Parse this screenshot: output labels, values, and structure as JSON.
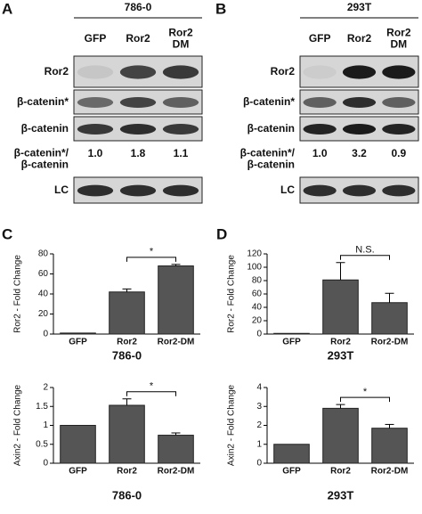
{
  "blots": [
    {
      "letter": "A",
      "cell_line": "786-0",
      "lanes": [
        [
          "GFP"
        ],
        [
          "Ror2"
        ],
        [
          "Ror2",
          "DM"
        ]
      ],
      "rows": [
        {
          "label": [
            "Ror2"
          ]
        },
        {
          "label": [
            "β-catenin*"
          ]
        },
        {
          "label": [
            "β-catenin"
          ]
        },
        {
          "label": [
            "β-catenin*/",
            "β-catenin"
          ],
          "values": [
            "1.0",
            "1.8",
            "1.1"
          ]
        },
        {
          "label": [
            "LC"
          ]
        }
      ]
    },
    {
      "letter": "B",
      "cell_line": "293T",
      "lanes": [
        [
          "GFP"
        ],
        [
          "Ror2"
        ],
        [
          "Ror2",
          "DM"
        ]
      ],
      "rows": [
        {
          "label": [
            "Ror2"
          ]
        },
        {
          "label": [
            "β-catenin*"
          ]
        },
        {
          "label": [
            "β-catenin"
          ]
        },
        {
          "label": [
            "β-catenin*/",
            "β-catenin"
          ],
          "values": [
            "1.0",
            "3.2",
            "0.9"
          ]
        },
        {
          "label": [
            "LC"
          ]
        }
      ]
    }
  ],
  "panel_letters": [
    "C",
    "D"
  ],
  "chart_data": [
    {
      "type": "bar",
      "ylabel": "Ror2 - Fold Change",
      "xlabel": "786-0",
      "categories": [
        "GFP",
        "Ror2",
        "Ror2-DM"
      ],
      "values": [
        1,
        42,
        68
      ],
      "errors": [
        0,
        3,
        1.5
      ],
      "color": "#555555",
      "ylim": [
        0,
        80
      ],
      "yticks": [
        0,
        20,
        40,
        60,
        80
      ],
      "annotation": "*"
    },
    {
      "type": "bar",
      "ylabel": "Axin2 - Fold Change",
      "xlabel": "786-0",
      "categories": [
        "GFP",
        "Ror2",
        "Ror2-DM"
      ],
      "values": [
        1,
        1.53,
        0.74
      ],
      "errors": [
        0,
        0.17,
        0.06
      ],
      "color": "#555555",
      "ylim": [
        0,
        2
      ],
      "yticks": [
        0,
        0.5,
        1,
        1.5,
        2
      ],
      "annotation": "*"
    },
    {
      "type": "bar",
      "ylabel": "Ror2 - Fold Change",
      "xlabel": "293T",
      "categories": [
        "GFP",
        "Ror2",
        "Ror2-DM"
      ],
      "values": [
        1,
        81,
        47
      ],
      "errors": [
        0,
        26,
        14
      ],
      "color": "#555555",
      "ylim": [
        0,
        120
      ],
      "yticks": [
        0,
        20,
        40,
        60,
        80,
        100,
        120
      ],
      "annotation": "N.S."
    },
    {
      "type": "bar",
      "ylabel": "Axin2 - Fold Change",
      "xlabel": "293T",
      "categories": [
        "GFP",
        "Ror2",
        "Ror2-DM"
      ],
      "values": [
        1,
        2.9,
        1.85
      ],
      "errors": [
        0,
        0.2,
        0.2
      ],
      "color": "#555555",
      "ylim": [
        0,
        4
      ],
      "yticks": [
        0,
        1,
        2,
        3,
        4
      ],
      "annotation": "*"
    }
  ]
}
